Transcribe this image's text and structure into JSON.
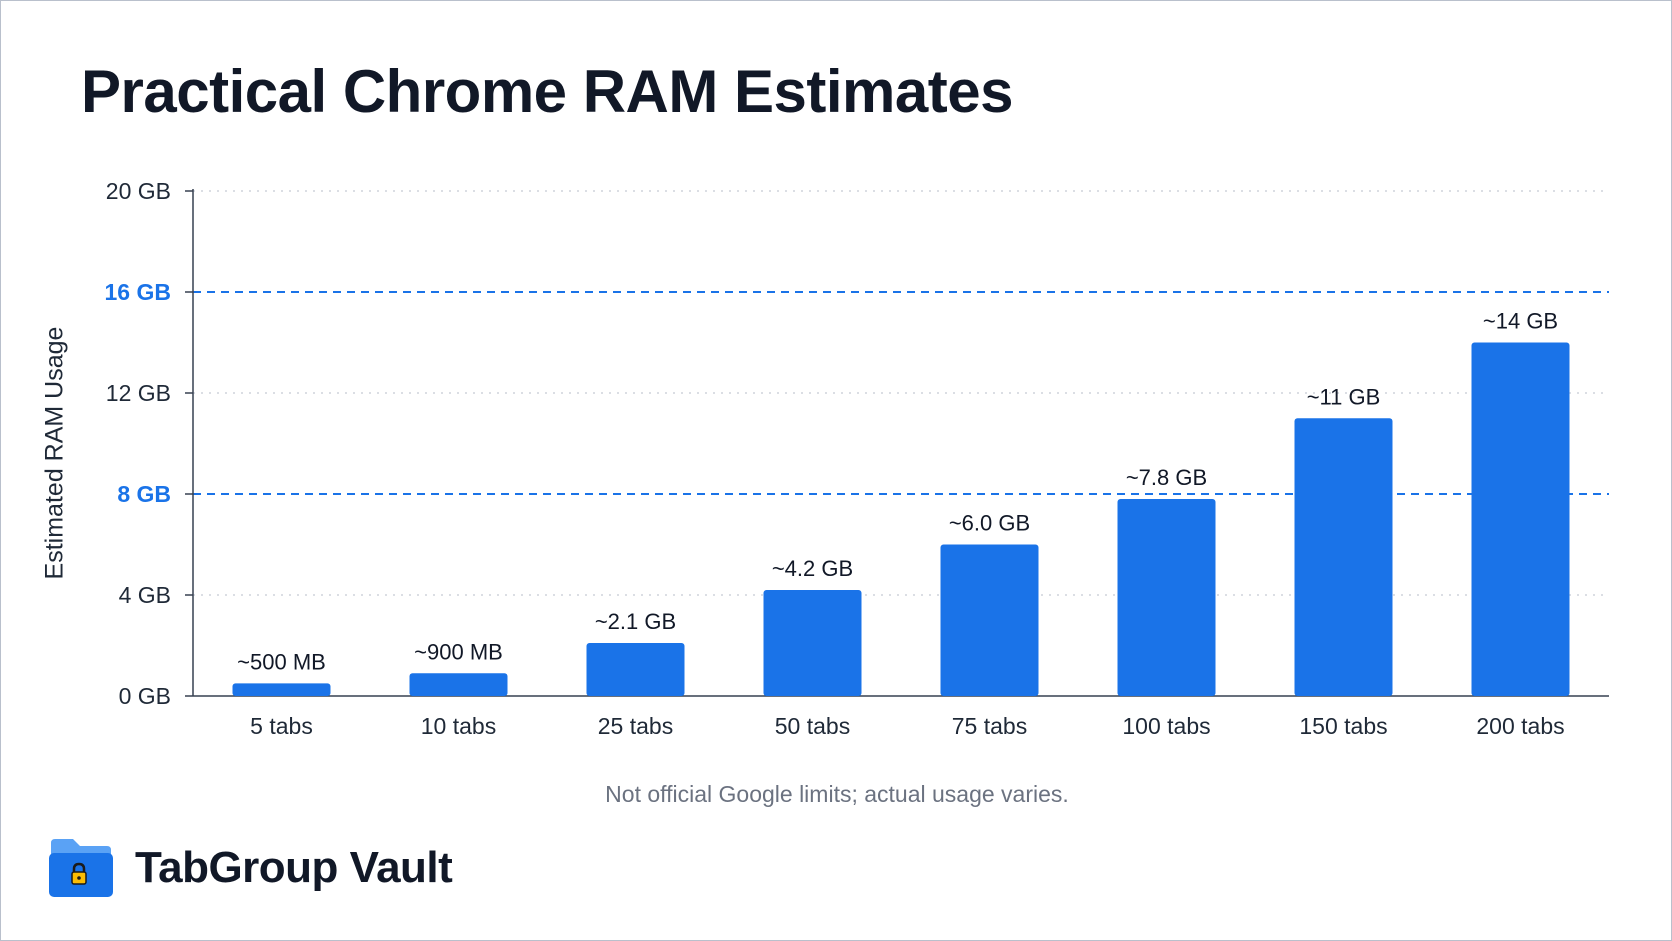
{
  "chart_data": {
    "type": "bar",
    "title": "Practical Chrome RAM Estimates",
    "ylabel": "Estimated RAM Usage",
    "xlabel": "",
    "ylim": [
      0,
      20
    ],
    "y_ticks": [
      {
        "value": 0,
        "label": "0 GB"
      },
      {
        "value": 4,
        "label": "4 GB"
      },
      {
        "value": 8,
        "label": "8 GB"
      },
      {
        "value": 12,
        "label": "12 GB"
      },
      {
        "value": 16,
        "label": "16 GB"
      },
      {
        "value": 20,
        "label": "20 GB"
      }
    ],
    "reference_lines": [
      8,
      16
    ],
    "categories": [
      "5 tabs",
      "10 tabs",
      "25 tabs",
      "50 tabs",
      "75 tabs",
      "100 tabs",
      "150 tabs",
      "200 tabs"
    ],
    "values": [
      0.5,
      0.9,
      2.1,
      4.2,
      6.0,
      7.8,
      11,
      14
    ],
    "data_labels": [
      "~500 MB",
      "~900 MB",
      "~2.1 GB",
      "~4.2 GB",
      "~6.0 GB",
      "~7.8 GB",
      "~11 GB",
      "~14 GB"
    ],
    "grid": true,
    "bar_color": "#1a73e8",
    "reference_color": "#1a73e8"
  },
  "footnote": "Not official Google limits; actual usage varies.",
  "brand": {
    "name": "TabGroup Vault",
    "icon": "folder-lock-icon"
  }
}
